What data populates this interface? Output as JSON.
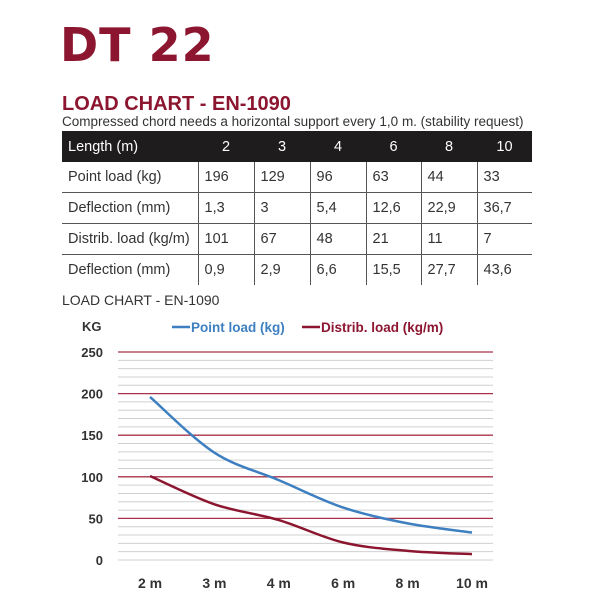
{
  "brand": "DT 22",
  "heading": "LOAD CHART - EN-1090",
  "subtitle": "Compressed chord needs a horizontal support every 1,0 m. (stability request)",
  "table": {
    "headers": [
      "Length (m)",
      "2",
      "3",
      "4",
      "6",
      "8",
      "10"
    ],
    "rows": [
      [
        "Point load (kg)",
        "196",
        "129",
        "96",
        "63",
        "44",
        "33"
      ],
      [
        "Deflection (mm)",
        "1,3",
        "3",
        "5,4",
        "12,6",
        "22,9",
        "36,7"
      ],
      [
        "Distrib. load (kg/m)",
        "101",
        "67",
        "48",
        "21",
        "11",
        "7"
      ],
      [
        "Deflection (mm)",
        "0,9",
        "2,9",
        "6,6",
        "15,5",
        "27,7",
        "43,6"
      ]
    ]
  },
  "chart_data": {
    "type": "line",
    "title": "LOAD CHART - EN-1090",
    "ylabel": "KG",
    "categories": [
      "2 m",
      "3 m",
      "4 m",
      "6 m",
      "8 m",
      "10 m"
    ],
    "ylim": [
      0,
      250
    ],
    "yticks": [
      "0",
      "50",
      "100",
      "150",
      "200",
      "250"
    ],
    "grid": true,
    "legend": "top",
    "series": [
      {
        "name": "Point load (kg)",
        "values": [
          196,
          129,
          96,
          63,
          44,
          33
        ],
        "color": "#3d7fc0"
      },
      {
        "name": "Distrib. load (kg/m)",
        "values": [
          101,
          67,
          48,
          21,
          11,
          7
        ],
        "color": "#8c1630"
      }
    ],
    "major_grid_color": "#a8344c",
    "minor_grid_color": "#d0d0d0"
  }
}
